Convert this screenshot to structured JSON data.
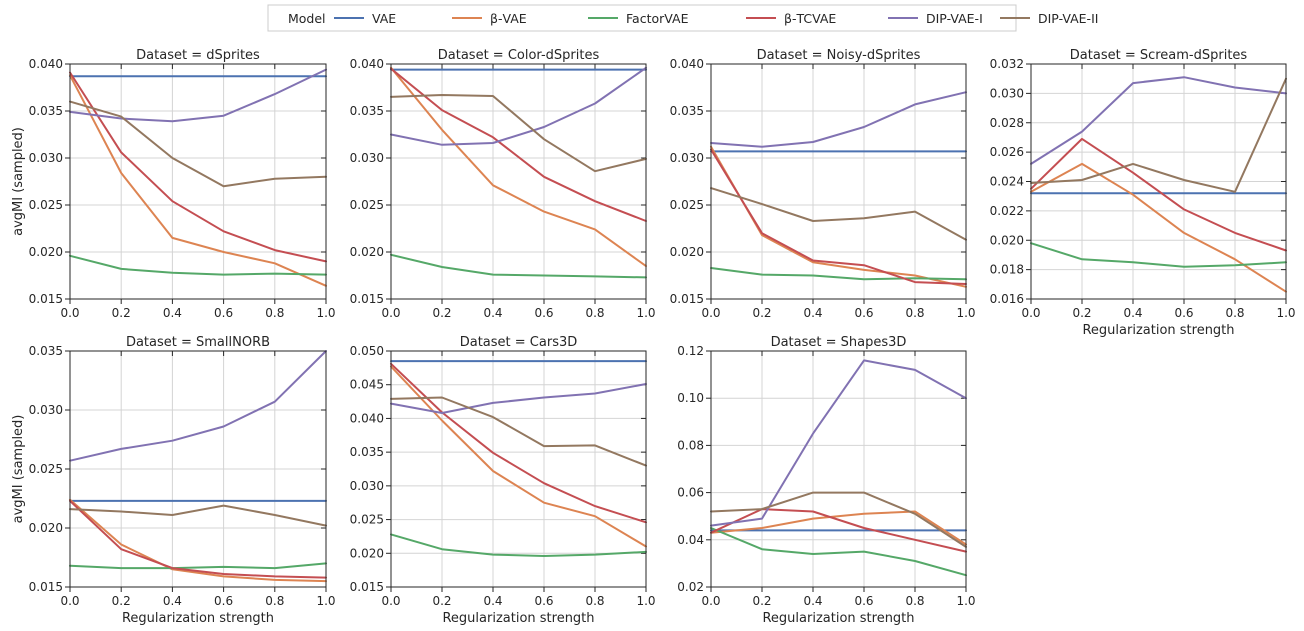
{
  "legend": {
    "title": "Model",
    "entries": [
      {
        "name": "VAE",
        "color": "#4c72b0"
      },
      {
        "name": "β-VAE",
        "color": "#dd8452"
      },
      {
        "name": "FactorVAE",
        "color": "#55a868"
      },
      {
        "name": "β-TCVAE",
        "color": "#c44e52"
      },
      {
        "name": "DIP-VAE-I",
        "color": "#8172b2"
      },
      {
        "name": "DIP-VAE-II",
        "color": "#937860"
      }
    ]
  },
  "chart_data": [
    {
      "type": "line",
      "title": "Dataset = dSprites",
      "xlabel": "",
      "ylabel": "avgMI (sampled)",
      "x": [
        0.0,
        0.2,
        0.4,
        0.6,
        0.8,
        1.0
      ],
      "xticks": [
        "0.0",
        "0.2",
        "0.4",
        "0.6",
        "0.8",
        "1.0"
      ],
      "xlim": [
        0,
        1
      ],
      "ylim": [
        0.015,
        0.04
      ],
      "yticks": [
        "0.015",
        "0.020",
        "0.025",
        "0.030",
        "0.035",
        "0.040"
      ],
      "grid": true,
      "series": [
        {
          "name": "VAE",
          "values": [
            0.0387,
            0.0387,
            0.0387,
            0.0387,
            0.0387,
            0.0387
          ]
        },
        {
          "name": "β-VAE",
          "values": [
            0.0388,
            0.0284,
            0.0215,
            0.02,
            0.0188,
            0.0164
          ]
        },
        {
          "name": "FactorVAE",
          "values": [
            0.0196,
            0.0182,
            0.0178,
            0.0176,
            0.0177,
            0.0176
          ]
        },
        {
          "name": "β-TCVAE",
          "values": [
            0.0391,
            0.0306,
            0.0254,
            0.0222,
            0.0202,
            0.019
          ]
        },
        {
          "name": "DIP-VAE-I",
          "values": [
            0.0349,
            0.0342,
            0.0339,
            0.0345,
            0.0368,
            0.0394
          ]
        },
        {
          "name": "DIP-VAE-II",
          "values": [
            0.036,
            0.0344,
            0.03,
            0.027,
            0.0278,
            0.028
          ]
        }
      ]
    },
    {
      "type": "line",
      "title": "Dataset = Color-dSprites",
      "xlabel": "",
      "ylabel": "",
      "x": [
        0.0,
        0.2,
        0.4,
        0.6,
        0.8,
        1.0
      ],
      "xticks": [
        "0.0",
        "0.2",
        "0.4",
        "0.6",
        "0.8",
        "1.0"
      ],
      "xlim": [
        0,
        1
      ],
      "ylim": [
        0.015,
        0.04
      ],
      "yticks": [
        "0.015",
        "0.020",
        "0.025",
        "0.030",
        "0.035",
        "0.040"
      ],
      "grid": true,
      "series": [
        {
          "name": "VAE",
          "values": [
            0.0394,
            0.0394,
            0.0394,
            0.0394,
            0.0394,
            0.0394
          ]
        },
        {
          "name": "β-VAE",
          "values": [
            0.0396,
            0.033,
            0.0271,
            0.0243,
            0.0224,
            0.0185
          ]
        },
        {
          "name": "FactorVAE",
          "values": [
            0.0197,
            0.0184,
            0.0176,
            0.0175,
            0.0174,
            0.0173
          ]
        },
        {
          "name": "β-TCVAE",
          "values": [
            0.0395,
            0.0351,
            0.0322,
            0.028,
            0.0254,
            0.0233
          ]
        },
        {
          "name": "DIP-VAE-I",
          "values": [
            0.0325,
            0.0314,
            0.0316,
            0.0333,
            0.0358,
            0.0396
          ]
        },
        {
          "name": "DIP-VAE-II",
          "values": [
            0.0365,
            0.0367,
            0.0366,
            0.032,
            0.0286,
            0.0299
          ]
        }
      ]
    },
    {
      "type": "line",
      "title": "Dataset = Noisy-dSprites",
      "xlabel": "",
      "ylabel": "",
      "x": [
        0.0,
        0.2,
        0.4,
        0.6,
        0.8,
        1.0
      ],
      "xticks": [
        "0.0",
        "0.2",
        "0.4",
        "0.6",
        "0.8",
        "1.0"
      ],
      "xlim": [
        0,
        1
      ],
      "ylim": [
        0.015,
        0.04
      ],
      "yticks": [
        "0.015",
        "0.020",
        "0.025",
        "0.030",
        "0.035",
        "0.040"
      ],
      "grid": true,
      "series": [
        {
          "name": "VAE",
          "values": [
            0.0307,
            0.0307,
            0.0307,
            0.0307,
            0.0307,
            0.0307
          ]
        },
        {
          "name": "β-VAE",
          "values": [
            0.0312,
            0.0218,
            0.0189,
            0.0181,
            0.0175,
            0.0163
          ]
        },
        {
          "name": "FactorVAE",
          "values": [
            0.0183,
            0.0176,
            0.0175,
            0.0171,
            0.0172,
            0.0171
          ]
        },
        {
          "name": "β-TCVAE",
          "values": [
            0.0309,
            0.022,
            0.0191,
            0.0186,
            0.0168,
            0.0166
          ]
        },
        {
          "name": "DIP-VAE-I",
          "values": [
            0.0316,
            0.0312,
            0.0317,
            0.0333,
            0.0357,
            0.037
          ]
        },
        {
          "name": "DIP-VAE-II",
          "values": [
            0.0268,
            0.0251,
            0.0233,
            0.0236,
            0.0243,
            0.0213
          ]
        }
      ]
    },
    {
      "type": "line",
      "title": "Dataset = Scream-dSprites",
      "xlabel": "Regularization strength",
      "ylabel": "",
      "x": [
        0.0,
        0.2,
        0.4,
        0.6,
        0.8,
        1.0
      ],
      "xticks": [
        "0.0",
        "0.2",
        "0.4",
        "0.6",
        "0.8",
        "1.0"
      ],
      "xlim": [
        0,
        1
      ],
      "ylim": [
        0.016,
        0.032
      ],
      "yticks": [
        "0.016",
        "0.018",
        "0.020",
        "0.022",
        "0.024",
        "0.026",
        "0.028",
        "0.030",
        "0.032"
      ],
      "grid": true,
      "series": [
        {
          "name": "VAE",
          "values": [
            0.0232,
            0.0232,
            0.0232,
            0.0232,
            0.0232,
            0.0232
          ]
        },
        {
          "name": "β-VAE",
          "values": [
            0.0233,
            0.0252,
            0.0231,
            0.0205,
            0.0187,
            0.0165
          ]
        },
        {
          "name": "FactorVAE",
          "values": [
            0.0198,
            0.0187,
            0.0185,
            0.0182,
            0.0183,
            0.0185
          ]
        },
        {
          "name": "β-TCVAE",
          "values": [
            0.0235,
            0.0269,
            0.0246,
            0.0221,
            0.0205,
            0.0193
          ]
        },
        {
          "name": "DIP-VAE-I",
          "values": [
            0.0252,
            0.0274,
            0.0307,
            0.0311,
            0.0304,
            0.03
          ]
        },
        {
          "name": "DIP-VAE-II",
          "values": [
            0.0239,
            0.0241,
            0.0252,
            0.0241,
            0.0233,
            0.031
          ]
        }
      ]
    },
    {
      "type": "line",
      "title": "Dataset = SmallNORB",
      "xlabel": "Regularization strength",
      "ylabel": "avgMI (sampled)",
      "x": [
        0.0,
        0.2,
        0.4,
        0.6,
        0.8,
        1.0
      ],
      "xticks": [
        "0.0",
        "0.2",
        "0.4",
        "0.6",
        "0.8",
        "1.0"
      ],
      "xlim": [
        0,
        1
      ],
      "ylim": [
        0.015,
        0.035
      ],
      "yticks": [
        "0.015",
        "0.020",
        "0.025",
        "0.030",
        "0.035"
      ],
      "grid": true,
      "series": [
        {
          "name": "VAE",
          "values": [
            0.0223,
            0.0223,
            0.0223,
            0.0223,
            0.0223,
            0.0223
          ]
        },
        {
          "name": "β-VAE",
          "values": [
            0.0224,
            0.0186,
            0.0165,
            0.0159,
            0.0156,
            0.0155
          ]
        },
        {
          "name": "FactorVAE",
          "values": [
            0.0168,
            0.0166,
            0.0166,
            0.0167,
            0.0166,
            0.017
          ]
        },
        {
          "name": "β-TCVAE",
          "values": [
            0.0223,
            0.0182,
            0.0166,
            0.0161,
            0.0159,
            0.0158
          ]
        },
        {
          "name": "DIP-VAE-I",
          "values": [
            0.0257,
            0.0267,
            0.0274,
            0.0286,
            0.0307,
            0.035
          ]
        },
        {
          "name": "DIP-VAE-II",
          "values": [
            0.0216,
            0.0214,
            0.0211,
            0.0219,
            0.0211,
            0.0202
          ]
        }
      ]
    },
    {
      "type": "line",
      "title": "Dataset = Cars3D",
      "xlabel": "Regularization strength",
      "ylabel": "",
      "x": [
        0.0,
        0.2,
        0.4,
        0.6,
        0.8,
        1.0
      ],
      "xticks": [
        "0.0",
        "0.2",
        "0.4",
        "0.6",
        "0.8",
        "1.0"
      ],
      "xlim": [
        0,
        1
      ],
      "ylim": [
        0.015,
        0.05
      ],
      "yticks": [
        "0.015",
        "0.020",
        "0.025",
        "0.030",
        "0.035",
        "0.040",
        "0.045",
        "0.050"
      ],
      "grid": true,
      "series": [
        {
          "name": "VAE",
          "values": [
            0.0485,
            0.0485,
            0.0485,
            0.0485,
            0.0485,
            0.0485
          ]
        },
        {
          "name": "β-VAE",
          "values": [
            0.0477,
            0.0397,
            0.0322,
            0.0275,
            0.0255,
            0.021
          ]
        },
        {
          "name": "FactorVAE",
          "values": [
            0.0228,
            0.0206,
            0.0198,
            0.0196,
            0.0198,
            0.0202
          ]
        },
        {
          "name": "β-TCVAE",
          "values": [
            0.0481,
            0.0409,
            0.0349,
            0.0304,
            0.027,
            0.0246
          ]
        },
        {
          "name": "DIP-VAE-I",
          "values": [
            0.0422,
            0.0408,
            0.0423,
            0.0431,
            0.0437,
            0.0451
          ]
        },
        {
          "name": "DIP-VAE-II",
          "values": [
            0.0429,
            0.0431,
            0.0402,
            0.0359,
            0.036,
            0.033
          ]
        }
      ]
    },
    {
      "type": "line",
      "title": "Dataset = Shapes3D",
      "xlabel": "Regularization strength",
      "ylabel": "",
      "x": [
        0.0,
        0.2,
        0.4,
        0.6,
        0.8,
        1.0
      ],
      "xticks": [
        "0.0",
        "0.2",
        "0.4",
        "0.6",
        "0.8",
        "1.0"
      ],
      "xlim": [
        0,
        1
      ],
      "ylim": [
        0.02,
        0.12
      ],
      "yticks": [
        "0.02",
        "0.04",
        "0.06",
        "0.08",
        "0.10",
        "0.12"
      ],
      "grid": true,
      "series": [
        {
          "name": "VAE",
          "values": [
            0.044,
            0.044,
            0.044,
            0.044,
            0.044,
            0.044
          ]
        },
        {
          "name": "β-VAE",
          "values": [
            0.043,
            0.045,
            0.049,
            0.051,
            0.052,
            0.038
          ]
        },
        {
          "name": "FactorVAE",
          "values": [
            0.045,
            0.036,
            0.034,
            0.035,
            0.031,
            0.025
          ]
        },
        {
          "name": "β-TCVAE",
          "values": [
            0.043,
            0.053,
            0.052,
            0.045,
            0.04,
            0.035
          ]
        },
        {
          "name": "DIP-VAE-I",
          "values": [
            0.046,
            0.049,
            0.085,
            0.116,
            0.112,
            0.1
          ]
        },
        {
          "name": "DIP-VAE-II",
          "values": [
            0.052,
            0.053,
            0.06,
            0.06,
            0.051,
            0.037
          ]
        }
      ]
    }
  ]
}
